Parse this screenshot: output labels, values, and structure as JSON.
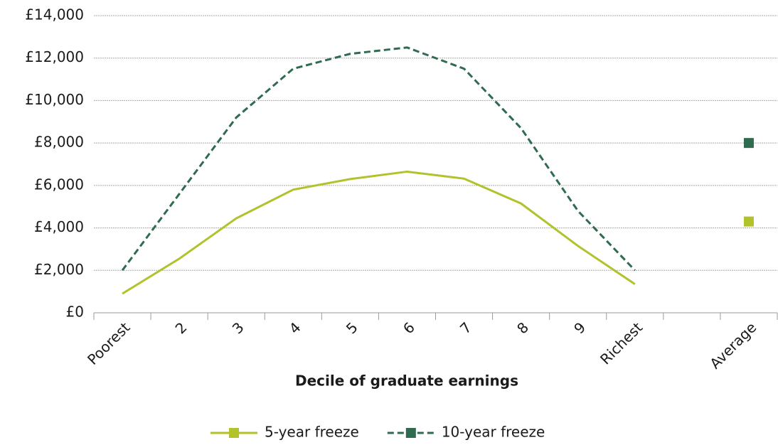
{
  "chart_data": {
    "type": "line",
    "xlabel": "Decile of graduate earnings",
    "categories": [
      "Poorest",
      "2",
      "3",
      "4",
      "5",
      "6",
      "7",
      "8",
      "9",
      "Richest",
      null,
      "Average"
    ],
    "series": [
      {
        "name": "5-year freeze",
        "color": "#b1c22b",
        "dash": false,
        "values": [
          900,
          2550,
          4450,
          5800,
          6300,
          6650,
          6320,
          5150,
          3150,
          1350,
          null,
          4300
        ]
      },
      {
        "name": "10-year freeze",
        "color": "#2e6b4f",
        "dash": true,
        "values": [
          2000,
          5600,
          9200,
          11500,
          12200,
          12500,
          11500,
          8700,
          4800,
          2000,
          null,
          8000
        ]
      }
    ],
    "ylim": [
      0,
      14000
    ],
    "yticks": [
      {
        "value": 0,
        "label": "£0"
      },
      {
        "value": 2000,
        "label": "£2,000"
      },
      {
        "value": 4000,
        "label": "£4,000"
      },
      {
        "value": 6000,
        "label": "£6,000"
      },
      {
        "value": 8000,
        "label": "£8,000"
      },
      {
        "value": 10000,
        "label": "£10,000"
      },
      {
        "value": 12000,
        "label": "£12,000"
      },
      {
        "value": 14000,
        "label": "£14,000"
      }
    ],
    "grid": true,
    "legend": "bottom"
  }
}
